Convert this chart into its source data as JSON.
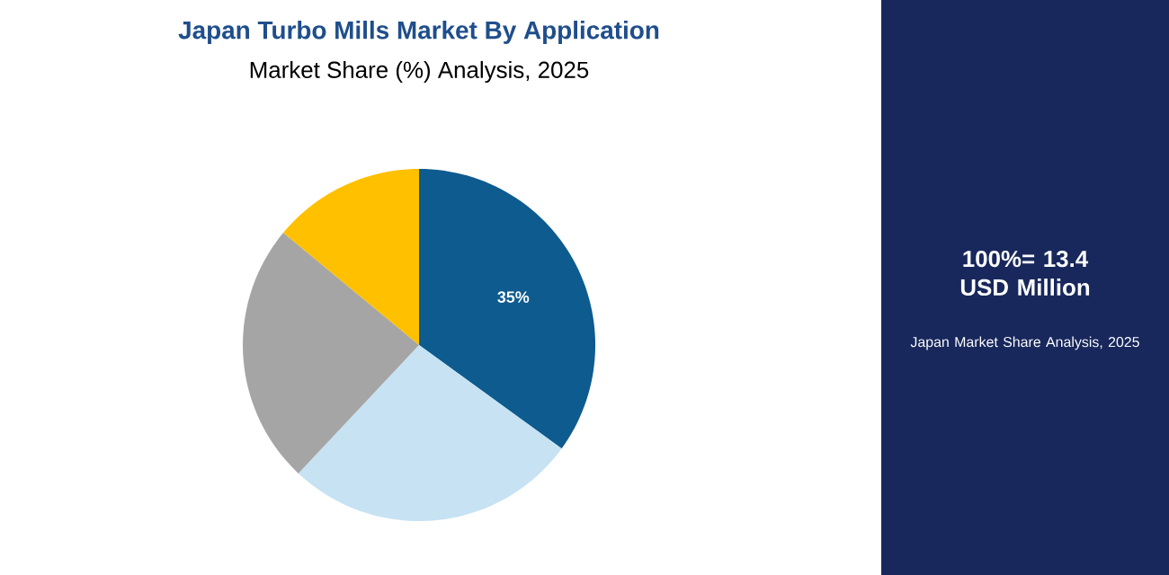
{
  "chart_data": {
    "type": "pie",
    "title": "Japan Turbo Mills Market By Application",
    "subtitle": "Market Share (%) Analysis, 2025",
    "categories": [
      null,
      null,
      null,
      null
    ],
    "values": [
      35,
      27,
      24,
      14
    ],
    "colors": [
      "#0d5b8f",
      "#c6e2f3",
      "#a5a5a5",
      "#ffc000"
    ],
    "value_labels": [
      "35%",
      null,
      null,
      null
    ],
    "annotations": [
      "100%= 13.4 USD Million",
      "Japan Market Share Analysis, 2025"
    ]
  }
}
